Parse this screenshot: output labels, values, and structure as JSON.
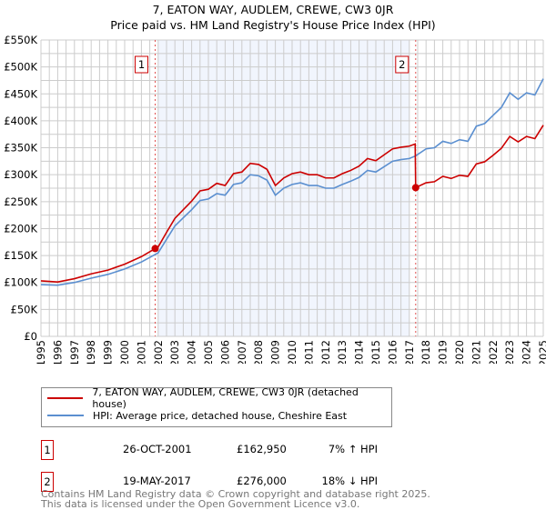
{
  "chart_data": {
    "type": "line",
    "title": "7, EATON WAY, AUDLEM, CREWE, CW3 0JR",
    "subtitle": "Price paid vs. HM Land Registry's House Price Index (HPI)",
    "xlim": [
      1995,
      2025
    ],
    "ylim": [
      0,
      550000
    ],
    "x_ticks": [
      "1995",
      "1996",
      "1997",
      "1998",
      "1999",
      "2000",
      "2001",
      "2002",
      "2003",
      "2004",
      "2005",
      "2006",
      "2007",
      "2008",
      "2009",
      "2010",
      "2011",
      "2012",
      "2013",
      "2014",
      "2015",
      "2016",
      "2017",
      "2018",
      "2019",
      "2020",
      "2021",
      "2022",
      "2023",
      "2024",
      "2025"
    ],
    "y_ticks": [
      "£0",
      "£50K",
      "£100K",
      "£150K",
      "£200K",
      "£250K",
      "£300K",
      "£350K",
      "£400K",
      "£450K",
      "£500K",
      "£550K"
    ],
    "grid": true,
    "shaded_range": [
      2002,
      2017
    ],
    "series": [
      {
        "name": "7, EATON WAY, AUDLEM, CREWE, CW3 0JR (detached house)",
        "color": "#cc0000",
        "x": [
          1995,
          1996,
          1997,
          1998,
          1999,
          2000,
          2001,
          2001.82,
          2002,
          2002.5,
          2003,
          2003.5,
          2004,
          2004.5,
          2005,
          2005.5,
          2006,
          2006.5,
          2007,
          2007.5,
          2008,
          2008.5,
          2009,
          2009.5,
          2010,
          2010.5,
          2011,
          2011.5,
          2012,
          2012.5,
          2013,
          2013.5,
          2014,
          2014.5,
          2015,
          2015.5,
          2016,
          2016.5,
          2017,
          2017.35,
          2017.38,
          2018,
          2018.5,
          2019,
          2019.5,
          2020,
          2020.5,
          2021,
          2021.5,
          2022,
          2022.5,
          2023,
          2023.5,
          2024,
          2024.5,
          2025
        ],
        "y": [
          103000,
          101000,
          107000,
          116000,
          123000,
          134000,
          148000,
          162950,
          166000,
          193000,
          219000,
          235000,
          251000,
          270000,
          273000,
          284000,
          280000,
          302000,
          305000,
          321000,
          319000,
          310000,
          280000,
          294000,
          302000,
          305000,
          300000,
          300000,
          294000,
          294000,
          302000,
          308000,
          316000,
          330000,
          326000,
          337000,
          348000,
          351000,
          353000,
          357000,
          276000,
          285000,
          287000,
          297000,
          293000,
          299000,
          297000,
          320000,
          324000,
          336000,
          349000,
          371000,
          361000,
          371000,
          367000,
          392000
        ]
      },
      {
        "name": "HPI: Average price, detached house, Cheshire East",
        "color": "#5b8fd0",
        "x": [
          1995,
          1996,
          1997,
          1998,
          1999,
          2000,
          2001,
          2001.82,
          2002,
          2002.5,
          2003,
          2003.5,
          2004,
          2004.5,
          2005,
          2005.5,
          2006,
          2006.5,
          2007,
          2007.5,
          2008,
          2008.5,
          2009,
          2009.5,
          2010,
          2010.5,
          2011,
          2011.5,
          2012,
          2012.5,
          2013,
          2013.5,
          2014,
          2014.5,
          2015,
          2015.5,
          2016,
          2016.5,
          2017,
          2017.38,
          2018,
          2018.5,
          2019,
          2019.5,
          2020,
          2020.5,
          2021,
          2021.5,
          2022,
          2022.5,
          2023,
          2023.5,
          2024,
          2024.5,
          2025
        ],
        "y": [
          96000,
          95000,
          100000,
          108000,
          115000,
          125000,
          138000,
          152000,
          155000,
          180000,
          205000,
          220000,
          235000,
          252000,
          255000,
          265000,
          262000,
          282000,
          285000,
          300000,
          298000,
          290000,
          262000,
          275000,
          282000,
          285000,
          280000,
          280000,
          275000,
          275000,
          282000,
          288000,
          295000,
          308000,
          305000,
          315000,
          325000,
          328000,
          330000,
          335000,
          348000,
          350000,
          362000,
          358000,
          365000,
          362000,
          390000,
          395000,
          410000,
          425000,
          452000,
          440000,
          452000,
          448000,
          478000
        ]
      }
    ],
    "sales": [
      {
        "label": "1",
        "x": 2001.82,
        "y": 162950
      },
      {
        "label": "2",
        "x": 2017.38,
        "y": 276000
      }
    ]
  },
  "legend": {
    "property": "7, EATON WAY, AUDLEM, CREWE, CW3 0JR (detached house)",
    "hpi": "HPI: Average price, detached house, Cheshire East"
  },
  "transactions": [
    {
      "num": "1",
      "date": "26-OCT-2001",
      "price": "£162,950",
      "hpi": "7% ↑ HPI"
    },
    {
      "num": "2",
      "date": "19-MAY-2017",
      "price": "£276,000",
      "hpi": "18% ↓ HPI"
    }
  ],
  "footer": {
    "line1": "Contains HM Land Registry data © Crown copyright and database right 2025.",
    "line2": "This data is licensed under the Open Government Licence v3.0."
  }
}
